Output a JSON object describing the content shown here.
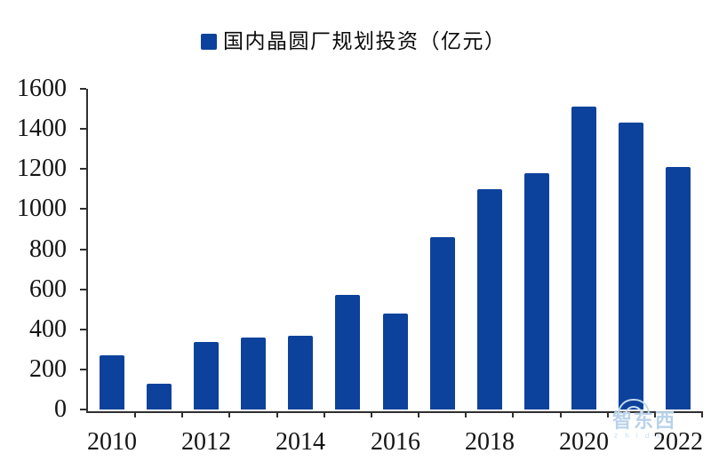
{
  "chart_data": {
    "type": "bar",
    "title": "国内晶圆厂规划投资（亿元）",
    "legend": "国内晶圆厂规划投资（亿元）",
    "legend_position": "top-center",
    "unit": "亿元",
    "categories": [
      "2010",
      "2011",
      "2012",
      "2013",
      "2014",
      "2015",
      "2016",
      "2017",
      "2018",
      "2019",
      "2020",
      "2021",
      "2022"
    ],
    "values": [
      270,
      130,
      335,
      360,
      370,
      570,
      480,
      860,
      1100,
      1180,
      1510,
      1430,
      1210
    ],
    "xlabel": "",
    "ylabel": "",
    "ylim": [
      0,
      1600
    ],
    "yticks": [
      0,
      200,
      400,
      600,
      800,
      1000,
      1200,
      1400,
      1600
    ],
    "xtick_labels": [
      "2010",
      "2012",
      "2014",
      "2016",
      "2018",
      "2020",
      "2022"
    ],
    "xtick_slot_indices": [
      0,
      2,
      4,
      6,
      8,
      10,
      12
    ],
    "grid": false,
    "bar_color": "#0c429c",
    "axis_color": "#2f2f2f",
    "background_color": "#ffffff"
  },
  "watermark": {
    "text": "智东西",
    "subtext": "z h i d x",
    "color": "#b9d2ea"
  }
}
